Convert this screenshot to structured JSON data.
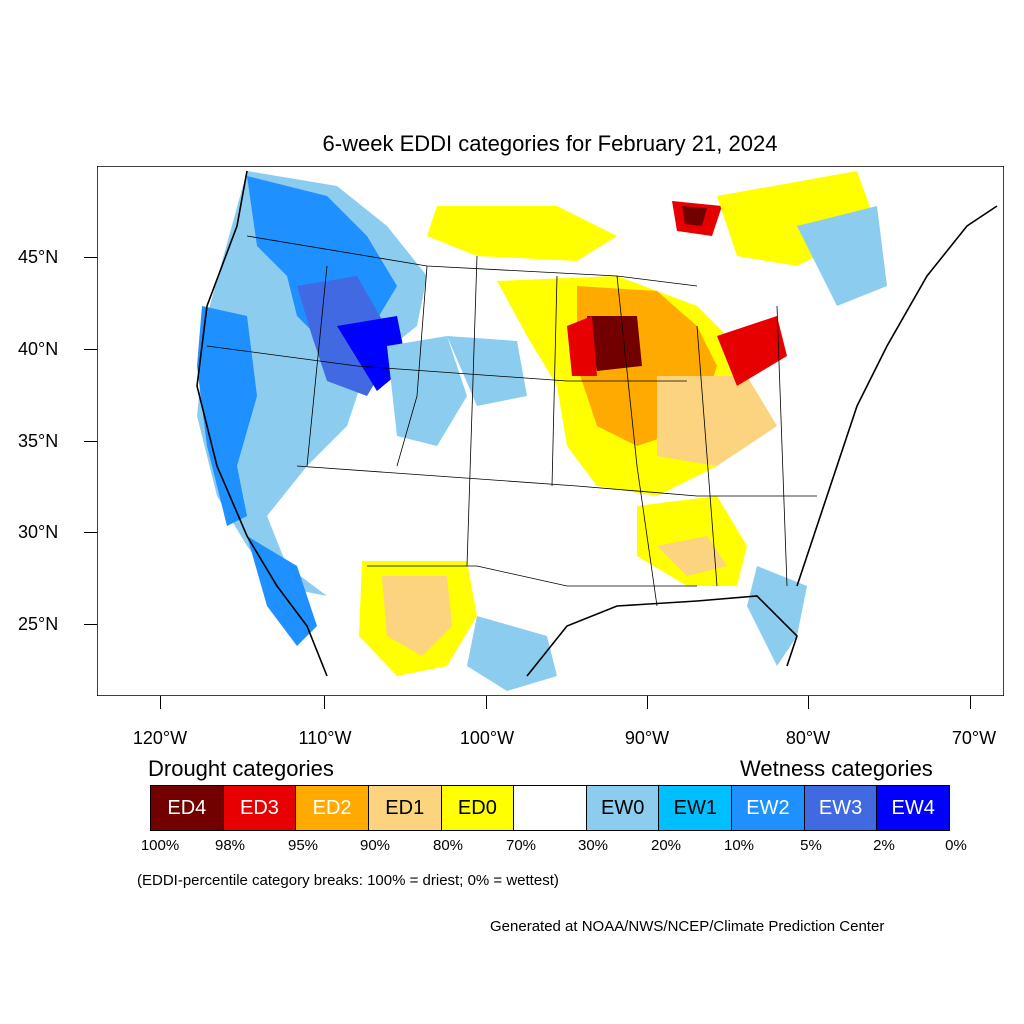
{
  "title": "6-week EDDI categories for February 21, 2024",
  "latitude_labels": [
    "45°N",
    "40°N",
    "35°N",
    "30°N",
    "25°N"
  ],
  "longitude_labels": [
    "120°W",
    "110°W",
    "100°W",
    "90°W",
    "80°W",
    "70°W"
  ],
  "legend": {
    "drought_heading": "Drought categories",
    "wetness_heading": "Wetness categories",
    "categories": [
      {
        "label": "ED4",
        "color": "#730000",
        "text_color": "#ffffff"
      },
      {
        "label": "ED3",
        "color": "#e60000",
        "text_color": "#ffffff"
      },
      {
        "label": "ED2",
        "color": "#ffaa00",
        "text_color": "#ffffff"
      },
      {
        "label": "ED1",
        "color": "#fcd37f",
        "text_color": "#000000"
      },
      {
        "label": "ED0",
        "color": "#ffff00",
        "text_color": "#000000"
      },
      {
        "label": "",
        "color": "#ffffff",
        "text_color": "#000000"
      },
      {
        "label": "EW0",
        "color": "#8ccdef",
        "text_color": "#000000"
      },
      {
        "label": "EW1",
        "color": "#00bfff",
        "text_color": "#000000"
      },
      {
        "label": "EW2",
        "color": "#1e90ff",
        "text_color": "#ffffff"
      },
      {
        "label": "EW3",
        "color": "#4169e1",
        "text_color": "#ffffff"
      },
      {
        "label": "EW4",
        "color": "#0000ff",
        "text_color": "#ffffff"
      }
    ],
    "breaks": [
      "100%",
      "98%",
      "95%",
      "90%",
      "80%",
      "70%",
      "30%",
      "20%",
      "10%",
      "5%",
      "2%",
      "0%"
    ]
  },
  "breaks_note": "(EDDI-percentile category breaks: 100% = driest; 0% = wettest)",
  "credit": "Generated at NOAA/NWS/NCEP/Climate Prediction Center"
}
